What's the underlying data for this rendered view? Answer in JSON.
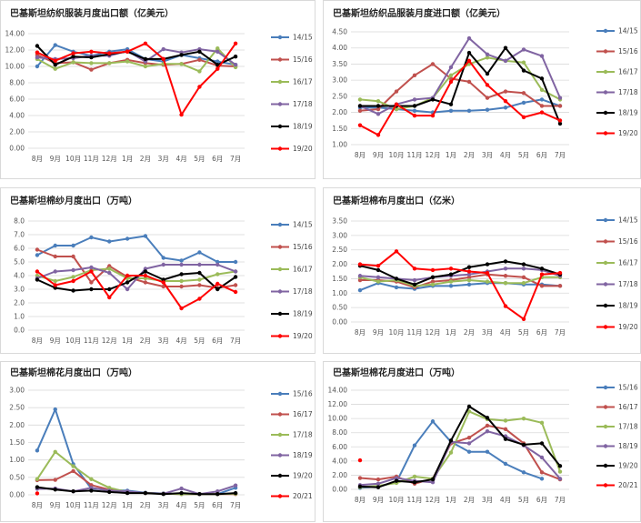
{
  "chart_data": [
    {
      "type": "line",
      "title": "巴基斯坦纺织服装月度出口额（亿美元）",
      "categories": [
        "8月",
        "9月",
        "10月",
        "11月",
        "12月",
        "1月",
        "2月",
        "3月",
        "4月",
        "5月",
        "6月",
        "7月"
      ],
      "ylim": [
        0,
        14
      ],
      "ystep": 2,
      "decimals": 2,
      "series": [
        {
          "name": "14/15",
          "color": "#4a7ebb",
          "values": [
            10.0,
            12.6,
            11.8,
            11.3,
            11.8,
            12.1,
            10.9,
            10.6,
            11.4,
            11.0,
            10.6,
            10.2
          ]
        },
        {
          "name": "15/16",
          "color": "#c0504d",
          "values": [
            11.4,
            10.4,
            10.5,
            9.6,
            10.4,
            10.8,
            10.4,
            10.2,
            10.3,
            10.8,
            10.1,
            10.0
          ]
        },
        {
          "name": "16/17",
          "color": "#9bbb59",
          "values": [
            10.9,
            9.7,
            10.5,
            10.4,
            10.4,
            10.6,
            10.0,
            10.3,
            10.3,
            9.4,
            12.2,
            9.9
          ]
        },
        {
          "name": "17/18",
          "color": "#8064a2",
          "values": [
            11.1,
            10.9,
            11.0,
            11.3,
            11.3,
            11.9,
            10.6,
            12.1,
            11.7,
            12.1,
            11.8,
            10.2
          ]
        },
        {
          "name": "18/19",
          "color": "#000000",
          "values": [
            12.5,
            10.2,
            11.2,
            11.1,
            11.5,
            11.8,
            10.9,
            10.9,
            11.4,
            11.8,
            10.2,
            11.2
          ]
        },
        {
          "name": "19/20",
          "color": "#ff0000",
          "values": [
            11.7,
            10.7,
            11.6,
            11.8,
            11.6,
            11.8,
            12.8,
            10.9,
            4.1,
            7.5,
            9.7,
            12.8
          ]
        }
      ]
    },
    {
      "type": "line",
      "title": "巴基斯坦纺织品服装月度进口额（亿美元）",
      "categories": [
        "8月",
        "9月",
        "10月",
        "11月",
        "12月",
        "1月",
        "2月",
        "3月",
        "4月",
        "5月",
        "6月",
        "7月"
      ],
      "ylim": [
        1,
        4.5
      ],
      "ystep": 0.5,
      "decimals": 2,
      "series": [
        {
          "name": "14/15",
          "color": "#4a7ebb",
          "values": [
            2.15,
            2.15,
            2.1,
            2.05,
            2.0,
            2.05,
            2.05,
            2.08,
            2.15,
            2.3,
            2.4,
            2.2
          ]
        },
        {
          "name": "15/16",
          "color": "#c0504d",
          "values": [
            2.05,
            2.1,
            2.65,
            3.15,
            3.5,
            3.05,
            2.95,
            2.45,
            2.65,
            2.6,
            2.2,
            2.2
          ]
        },
        {
          "name": "16/17",
          "color": "#9bbb59",
          "values": [
            2.4,
            2.35,
            2.1,
            2.2,
            2.45,
            3.15,
            3.5,
            3.7,
            3.6,
            3.55,
            2.7,
            2.4
          ]
        },
        {
          "name": "17/18",
          "color": "#8064a2",
          "values": [
            2.2,
            1.95,
            2.25,
            2.4,
            2.45,
            3.4,
            4.3,
            3.8,
            3.6,
            3.95,
            3.75,
            2.45
          ]
        },
        {
          "name": "18/19",
          "color": "#000000",
          "values": [
            2.2,
            2.2,
            2.2,
            2.2,
            2.4,
            2.25,
            3.85,
            3.2,
            4.0,
            3.3,
            3.05,
            1.65
          ]
        },
        {
          "name": "19/20",
          "color": "#ff0000",
          "values": [
            1.6,
            1.3,
            2.25,
            1.9,
            1.9,
            2.95,
            3.6,
            2.85,
            2.35,
            1.85,
            2.0,
            1.75
          ]
        }
      ]
    },
    {
      "type": "line",
      "title": "巴基斯坦棉纱月度出口（万吨）",
      "categories": [
        "8月",
        "9月",
        "10月",
        "11月",
        "12月",
        "1月",
        "2月",
        "3月",
        "4月",
        "5月",
        "6月",
        "7月"
      ],
      "ylim": [
        0,
        8
      ],
      "ystep": 1,
      "decimals": 1,
      "series": [
        {
          "name": "14/15",
          "color": "#4a7ebb",
          "values": [
            5.5,
            6.2,
            6.2,
            6.8,
            6.5,
            6.7,
            6.9,
            5.3,
            5.1,
            5.7,
            5.0,
            5.0
          ]
        },
        {
          "name": "15/16",
          "color": "#c0504d",
          "values": [
            5.9,
            5.4,
            5.4,
            3.5,
            4.7,
            3.9,
            3.5,
            3.2,
            3.2,
            3.3,
            3.1,
            3.3
          ]
        },
        {
          "name": "16/17",
          "color": "#9bbb59",
          "values": [
            4.0,
            3.6,
            3.9,
            4.4,
            4.5,
            3.8,
            3.8,
            3.6,
            3.6,
            3.7,
            4.1,
            4.3
          ]
        },
        {
          "name": "17/18",
          "color": "#8064a2",
          "values": [
            3.8,
            4.3,
            4.4,
            4.6,
            4.2,
            3.0,
            4.5,
            4.8,
            4.8,
            4.8,
            4.8,
            4.3
          ]
        },
        {
          "name": "18/19",
          "color": "#000000",
          "values": [
            3.7,
            3.1,
            2.9,
            3.0,
            3.0,
            3.5,
            4.3,
            3.7,
            4.1,
            4.2,
            3.0,
            3.9
          ]
        },
        {
          "name": "19/20",
          "color": "#ff0000",
          "values": [
            4.3,
            3.3,
            3.6,
            4.3,
            2.4,
            4.0,
            4.0,
            3.5,
            1.6,
            2.3,
            3.4,
            2.8
          ]
        }
      ]
    },
    {
      "type": "line",
      "title": "巴基斯坦棉布月度出口（亿米）",
      "categories": [
        "8月",
        "9月",
        "10月",
        "11月",
        "12月",
        "1月",
        "2月",
        "3月",
        "4月",
        "5月",
        "6月",
        "7月"
      ],
      "ylim": [
        0,
        3.5
      ],
      "ystep": 0.5,
      "decimals": 2,
      "series": [
        {
          "name": "14/15",
          "color": "#4a7ebb",
          "values": [
            1.1,
            1.35,
            1.2,
            1.15,
            1.25,
            1.25,
            1.3,
            1.35,
            1.35,
            1.3,
            1.3,
            1.25
          ]
        },
        {
          "name": "15/16",
          "color": "#c0504d",
          "values": [
            1.45,
            1.45,
            1.4,
            1.2,
            1.4,
            1.45,
            1.55,
            1.65,
            1.6,
            1.55,
            1.25,
            1.25
          ]
        },
        {
          "name": "16/17",
          "color": "#9bbb59",
          "values": [
            1.55,
            1.4,
            1.45,
            1.25,
            1.3,
            1.4,
            1.45,
            1.4,
            1.35,
            1.35,
            1.55,
            1.55
          ]
        },
        {
          "name": "17/18",
          "color": "#8064a2",
          "values": [
            1.6,
            1.55,
            1.5,
            1.45,
            1.55,
            1.6,
            1.65,
            1.75,
            1.85,
            1.85,
            1.8,
            1.6
          ]
        },
        {
          "name": "18/19",
          "color": "#000000",
          "values": [
            1.95,
            1.8,
            1.5,
            1.3,
            1.55,
            1.65,
            1.9,
            2.0,
            2.1,
            2.0,
            1.85,
            1.65
          ]
        },
        {
          "name": "19/20",
          "color": "#ff0000",
          "values": [
            2.0,
            1.95,
            2.45,
            1.85,
            1.8,
            1.85,
            1.75,
            1.7,
            0.55,
            0.1,
            1.65,
            1.7
          ]
        }
      ]
    },
    {
      "type": "line",
      "title": "巴基斯坦棉花月度出口（万吨）",
      "categories": [
        "8月",
        "9月",
        "10月",
        "11月",
        "12月",
        "1月",
        "2月",
        "3月",
        "4月",
        "5月",
        "6月",
        "7月"
      ],
      "ylim": [
        0,
        3
      ],
      "ystep": 0.5,
      "decimals": 2,
      "series": [
        {
          "name": "15/16",
          "color": "#4a7ebb",
          "values": [
            1.27,
            2.45,
            0.88,
            0.18,
            0.14,
            0.12,
            0.06,
            0.04,
            0.02,
            0.02,
            0.02,
            0.2
          ]
        },
        {
          "name": "16/17",
          "color": "#c0504d",
          "values": [
            0.42,
            0.43,
            0.68,
            0.28,
            0.15,
            0.07,
            0.05,
            0.03,
            0.02,
            0.02,
            0.02,
            0.02
          ]
        },
        {
          "name": "17/18",
          "color": "#9bbb59",
          "values": [
            0.45,
            1.23,
            0.82,
            0.45,
            0.2,
            0.08,
            0.05,
            0.03,
            0.02,
            0.02,
            0.02,
            0.03
          ]
        },
        {
          "name": "18/19",
          "color": "#8064a2",
          "values": [
            0.17,
            0.18,
            0.1,
            0.2,
            0.12,
            0.1,
            0.05,
            0.03,
            0.18,
            0.02,
            0.1,
            0.27
          ]
        },
        {
          "name": "19/20",
          "color": "#000000",
          "values": [
            0.22,
            0.15,
            0.1,
            0.12,
            0.08,
            0.05,
            0.05,
            0.02,
            0.05,
            0.02,
            0.02,
            0.05
          ]
        },
        {
          "name": "20/21",
          "color": "#ff0000",
          "values": [
            0.04,
            null,
            null,
            null,
            null,
            null,
            null,
            null,
            null,
            null,
            null,
            null
          ]
        }
      ]
    },
    {
      "type": "line",
      "title": "巴基斯坦棉花月度进口（万吨）",
      "categories": [
        "8月",
        "9月",
        "10月",
        "11月",
        "12月",
        "1月",
        "2月",
        "3月",
        "4月",
        "5月",
        "6月",
        "7月"
      ],
      "ylim": [
        0,
        14
      ],
      "ystep": 2,
      "decimals": 2,
      "series": [
        {
          "name": "15/16",
          "color": "#4a7ebb",
          "values": [
            0.2,
            0.4,
            1.0,
            6.2,
            9.6,
            6.7,
            5.3,
            5.3,
            3.6,
            2.4,
            1.5,
            null
          ]
        },
        {
          "name": "16/17",
          "color": "#c0504d",
          "values": [
            1.6,
            1.4,
            1.8,
            0.8,
            1.5,
            6.5,
            7.3,
            9.0,
            8.5,
            6.5,
            2.4,
            1.4
          ]
        },
        {
          "name": "17/18",
          "color": "#9bbb59",
          "values": [
            0.3,
            0.5,
            0.9,
            1.8,
            1.5,
            5.2,
            11.0,
            9.9,
            9.7,
            10.0,
            9.4,
            2.5
          ]
        },
        {
          "name": "18/19",
          "color": "#8064a2",
          "values": [
            0.6,
            0.8,
            1.6,
            1.2,
            1.0,
            6.7,
            6.5,
            8.2,
            7.5,
            6.2,
            4.5,
            1.5
          ]
        },
        {
          "name": "19/20",
          "color": "#000000",
          "values": [
            0.4,
            0.3,
            1.2,
            1.0,
            1.4,
            6.9,
            11.7,
            10.1,
            7.1,
            6.3,
            6.5,
            3.3
          ]
        },
        {
          "name": "20/21",
          "color": "#ff0000",
          "values": [
            4.1,
            null,
            null,
            null,
            null,
            null,
            null,
            null,
            null,
            null,
            null,
            null
          ]
        }
      ]
    }
  ]
}
